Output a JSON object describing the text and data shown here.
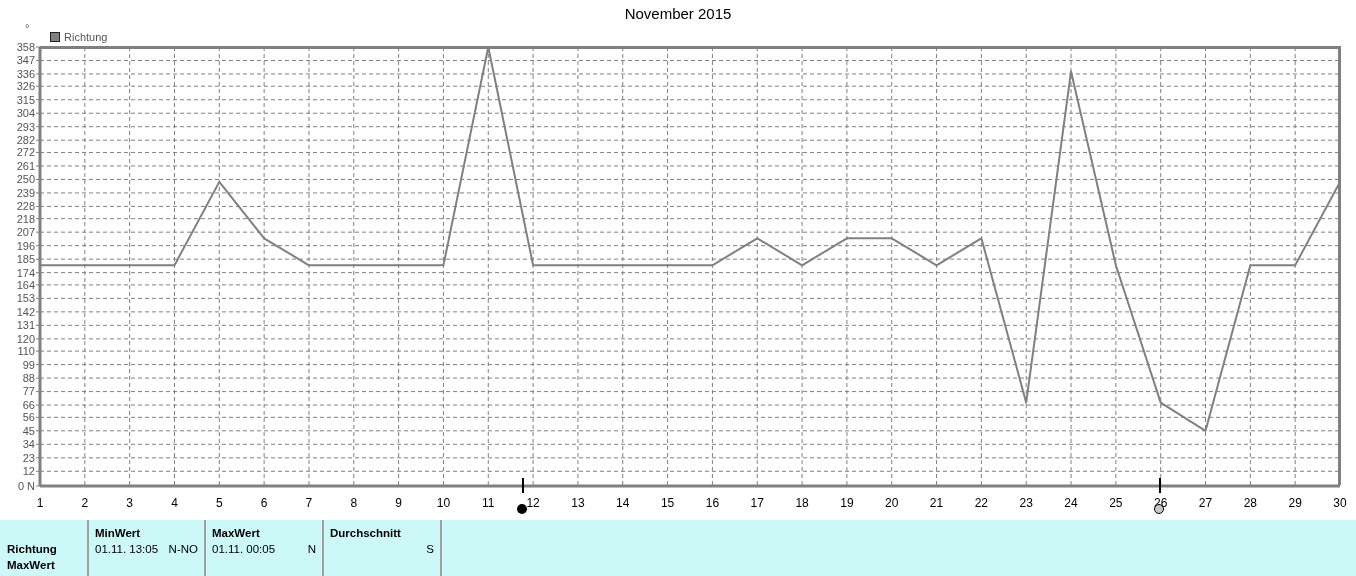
{
  "chart_data": {
    "type": "line",
    "title": "November 2015",
    "ylabel": "°",
    "x": [
      1,
      2,
      3,
      4,
      5,
      6,
      7,
      8,
      9,
      10,
      11,
      12,
      13,
      14,
      15,
      16,
      17,
      18,
      19,
      20,
      21,
      22,
      23,
      24,
      25,
      26,
      27,
      28,
      29,
      30
    ],
    "series": [
      {
        "name": "Richtung",
        "color": "#808080",
        "values": [
          180,
          180,
          180,
          180,
          248,
          202,
          180,
          180,
          180,
          180,
          358,
          180,
          180,
          180,
          180,
          180,
          202,
          180,
          202,
          202,
          180,
          202,
          68,
          338,
          180,
          68,
          45,
          180,
          180,
          248
        ]
      }
    ],
    "xlim": [
      1,
      30
    ],
    "xticks": [
      1,
      2,
      3,
      4,
      5,
      6,
      7,
      8,
      9,
      10,
      11,
      12,
      13,
      14,
      15,
      16,
      17,
      18,
      19,
      20,
      21,
      22,
      23,
      24,
      25,
      26,
      27,
      28,
      29,
      30
    ],
    "ylim": [
      0,
      358
    ],
    "yticks": [
      {
        "value": 0,
        "label": "0 N"
      },
      12,
      23,
      34,
      45,
      56,
      66,
      77,
      88,
      99,
      110,
      120,
      131,
      142,
      153,
      164,
      174,
      185,
      196,
      207,
      218,
      228,
      239,
      250,
      261,
      272,
      282,
      293,
      304,
      315,
      326,
      336,
      347,
      358
    ],
    "grid": true,
    "legend": "top left",
    "annotations": [
      "Richtung",
      "MaxWert",
      "MinWert",
      "01.11. 13:05",
      "N-NO",
      "MaxWert",
      "01.11. 00:05",
      "N",
      "Durchschnitt",
      "S"
    ]
  }
}
